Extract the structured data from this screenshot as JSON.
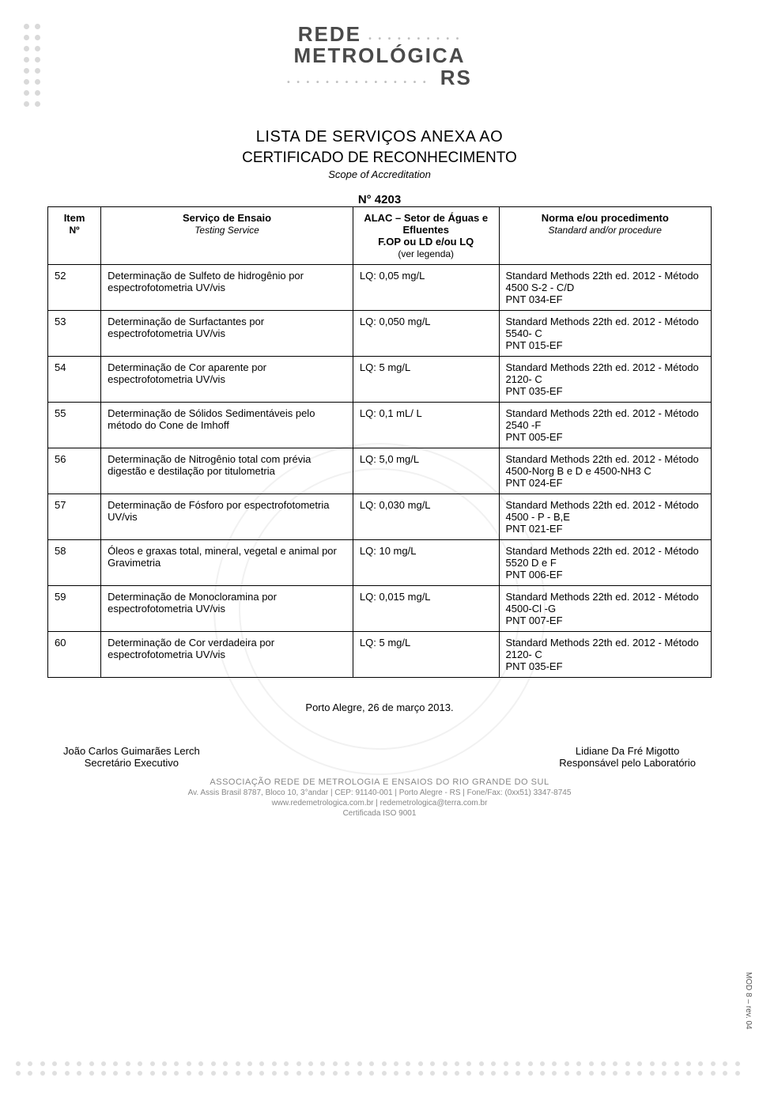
{
  "logo": {
    "line1": "REDE",
    "line2": "METROLÓGICA",
    "line3": "RS"
  },
  "title": {
    "main": "LISTA DE SERVIÇOS ANEXA AO",
    "sub": "CERTIFICADO DE RECONHECIMENTO",
    "scope": "Scope of Accreditation"
  },
  "number": "N° 4203",
  "sector": "ALAC – Setor de Águas e Efluentes",
  "columns": {
    "item": "Item",
    "item_sub": "Nº",
    "service": "Serviço de Ensaio",
    "service_sub": "Testing Service",
    "lq": "F.OP ou LD e/ou LQ",
    "lq_sub": "(ver legenda)",
    "norm": "Norma e/ou procedimento",
    "norm_sub": "Standard and/or procedure"
  },
  "rows": [
    {
      "item": "52",
      "service": "Determinação de Sulfeto de hidrogênio por espectrofotometria UV/vis",
      "lq": "LQ: 0,05 mg/L",
      "norm": "Standard Methods 22th ed. 2012 - Método 4500 S-2 - C/D\nPNT 034-EF"
    },
    {
      "item": "53",
      "service": "Determinação de Surfactantes por espectrofotometria UV/vis",
      "lq": "LQ: 0,050 mg/L",
      "norm": "Standard Methods 22th ed. 2012 - Método 5540- C\nPNT 015-EF"
    },
    {
      "item": "54",
      "service": "Determinação de Cor aparente por espectrofotometria UV/vis",
      "lq": "LQ: 5 mg/L",
      "norm": "Standard Methods 22th ed. 2012 - Método 2120- C\nPNT 035-EF"
    },
    {
      "item": "55",
      "service": "Determinação de Sólidos Sedimentáveis pelo método do Cone de Imhoff",
      "lq": "LQ: 0,1 mL/ L",
      "norm": "Standard Methods 22th ed. 2012 - Método 2540 -F\nPNT 005-EF"
    },
    {
      "item": "56",
      "service": "Determinação de Nitrogênio total com prévia digestão e destilação por titulometria",
      "lq": "LQ: 5,0 mg/L",
      "norm": "Standard Methods 22th ed. 2012 - Método 4500-Norg B e D e 4500-NH3 C\nPNT 024-EF"
    },
    {
      "item": "57",
      "service": "Determinação de Fósforo por espectrofotometria UV/vis",
      "lq": "LQ: 0,030 mg/L",
      "norm": "Standard Methods 22th ed. 2012 - Método 4500 - P - B,E\nPNT 021-EF"
    },
    {
      "item": "58",
      "service": "Óleos e graxas total, mineral, vegetal e animal por Gravimetria",
      "lq": "LQ: 10 mg/L",
      "norm": "Standard Methods 22th ed. 2012 - Método 5520 D e F\nPNT 006-EF"
    },
    {
      "item": "59",
      "service": "Determinação de Monocloramina por espectrofotometria UV/vis",
      "lq": "LQ: 0,015 mg/L",
      "norm": "Standard Methods 22th ed. 2012 - Método 4500-Cl -G\nPNT 007-EF"
    },
    {
      "item": "60",
      "service": "Determinação de Cor verdadeira por espectrofotometria UV/vis",
      "lq": "LQ: 5 mg/L",
      "norm": "Standard Methods 22th ed. 2012 - Método 2120- C\nPNT 035-EF"
    }
  ],
  "date_line": "Porto Alegre, 26 de março 2013.",
  "sign_left_name": "João Carlos Guimarães Lerch",
  "sign_left_role": "Secretário  Executivo",
  "sign_right_name": "Lidiane Da Fré Migotto",
  "sign_right_role": "Responsável pelo Laboratório",
  "footer": {
    "assoc": "ASSOCIAÇÃO REDE DE METROLOGIA E ENSAIOS DO RIO GRANDE DO SUL",
    "addr": "Av. Assis Brasil 8787, Bloco 10, 3°andar | CEP: 91140-001 | Porto Alegre - RS | Fone/Fax: (0xx51) 3347-8745",
    "web": "www.redemetrologica.com.br | redemetrologica@terra.com.br",
    "cert": "Certificada ISO 9001"
  },
  "side_label": "MOD 8 – rev. 04"
}
